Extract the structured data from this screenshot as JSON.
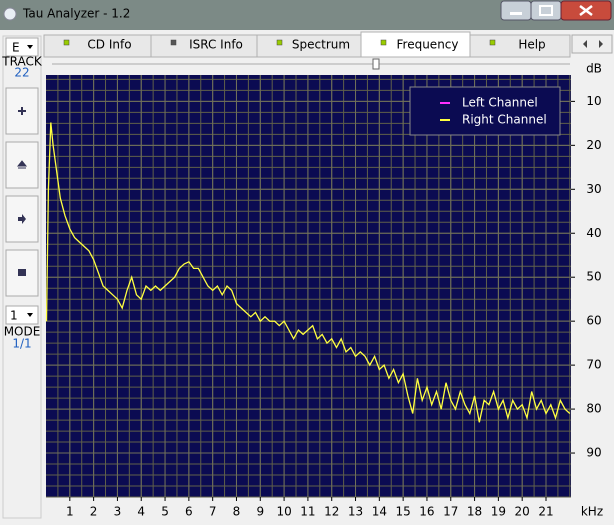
{
  "window": {
    "title": "Tau Analyzer - 1.2"
  },
  "tabs": [
    "CD Info",
    "ISRC Info",
    "Spectrum",
    "Frequency",
    "Help"
  ],
  "sidebar": {
    "drive": "E",
    "track_label": "TRACK",
    "track": "22",
    "mode_select": "1",
    "mode_label": "MODE",
    "mode": "1/1"
  },
  "chart_data": {
    "type": "line",
    "xlabel": "kHz",
    "ylabel": "dB",
    "x": [
      0.02,
      0.1,
      0.2,
      0.3,
      0.45,
      0.6,
      0.8,
      1.0,
      1.2,
      1.4,
      1.6,
      1.8,
      2.0,
      2.2,
      2.4,
      2.6,
      2.8,
      3.0,
      3.2,
      3.4,
      3.6,
      3.8,
      4.0,
      4.2,
      4.4,
      4.6,
      4.8,
      5.0,
      5.2,
      5.4,
      5.6,
      5.8,
      6.0,
      6.2,
      6.4,
      6.6,
      6.8,
      7.0,
      7.2,
      7.4,
      7.6,
      7.8,
      8.0,
      8.2,
      8.4,
      8.6,
      8.8,
      9.0,
      9.2,
      9.4,
      9.6,
      9.8,
      10.0,
      10.2,
      10.4,
      10.6,
      10.8,
      11.0,
      11.2,
      11.4,
      11.6,
      11.8,
      12.0,
      12.2,
      12.4,
      12.6,
      12.8,
      13.0,
      13.2,
      13.4,
      13.6,
      13.8,
      14.0,
      14.2,
      14.4,
      14.6,
      14.8,
      15.0,
      15.2,
      15.4,
      15.6,
      15.8,
      16.0,
      16.2,
      16.4,
      16.6,
      16.8,
      17.0,
      17.2,
      17.4,
      17.6,
      17.8,
      18.0,
      18.2,
      18.4,
      18.6,
      18.8,
      19.0,
      19.2,
      19.4,
      19.6,
      19.8,
      20.0,
      20.2,
      20.4,
      20.6,
      20.8,
      21.0,
      21.2,
      21.4,
      21.6,
      21.8,
      22.0
    ],
    "series": [
      {
        "name": "Left Channel",
        "color": "#ff30ff",
        "values": [
          null,
          null,
          null,
          null,
          null,
          null,
          null,
          null,
          null,
          null,
          null,
          null,
          null,
          null,
          null,
          null,
          null,
          null,
          null,
          null,
          null,
          null,
          null,
          null,
          null,
          null,
          null,
          null,
          null,
          null,
          null,
          null,
          null,
          null,
          null,
          null,
          null,
          null,
          null,
          null,
          null,
          null,
          null,
          null,
          null,
          null,
          null,
          null,
          null,
          null,
          null,
          null,
          null,
          null,
          null,
          null,
          null,
          null,
          null,
          null,
          null,
          null,
          null,
          null,
          null,
          null,
          null,
          null,
          null,
          null,
          null,
          null,
          null,
          null,
          null,
          null,
          null,
          null,
          null,
          null,
          null,
          null,
          null,
          null,
          null,
          null,
          null,
          null,
          null,
          null,
          null,
          null,
          null,
          null,
          null,
          null,
          null,
          null,
          null,
          null,
          null,
          null,
          null,
          null,
          null,
          null,
          null,
          null,
          null,
          null,
          null,
          null,
          null
        ]
      },
      {
        "name": "Right Channel",
        "color": "#ffff40",
        "values": [
          60,
          30,
          14.8,
          20,
          26,
          32,
          36,
          39,
          41,
          42,
          43,
          44,
          46,
          49,
          52,
          53,
          54,
          55,
          57,
          53,
          50,
          54,
          55,
          52,
          53,
          52,
          53,
          52,
          51,
          50,
          48,
          47,
          46.5,
          48,
          48,
          50,
          52,
          53,
          52,
          54,
          52,
          53,
          56,
          57,
          58,
          59,
          58,
          60,
          59,
          60,
          60,
          61,
          60,
          62,
          64,
          62,
          63,
          62,
          61,
          64,
          63,
          65,
          64,
          66,
          64,
          67,
          66,
          68,
          67,
          68,
          70,
          68,
          71,
          70,
          73,
          71,
          74,
          72,
          77,
          81,
          73,
          78,
          75,
          79,
          76,
          80,
          74,
          78,
          80,
          76,
          79,
          81,
          77,
          83,
          78,
          79,
          76,
          80,
          78,
          82,
          78,
          80,
          79,
          82,
          76,
          80,
          78,
          81,
          79,
          82,
          78,
          80,
          81
        ]
      }
    ],
    "xlim": [
      0,
      22.05
    ],
    "xticks": [
      1,
      2,
      3,
      4,
      5,
      6,
      7,
      8,
      9,
      10,
      11,
      12,
      13,
      14,
      15,
      16,
      17,
      18,
      19,
      20,
      21
    ],
    "ylim": [
      4,
      100
    ],
    "yticks": [
      10,
      20,
      30,
      40,
      50,
      60,
      70,
      80,
      90
    ],
    "grid": true,
    "legend": "upper right"
  }
}
